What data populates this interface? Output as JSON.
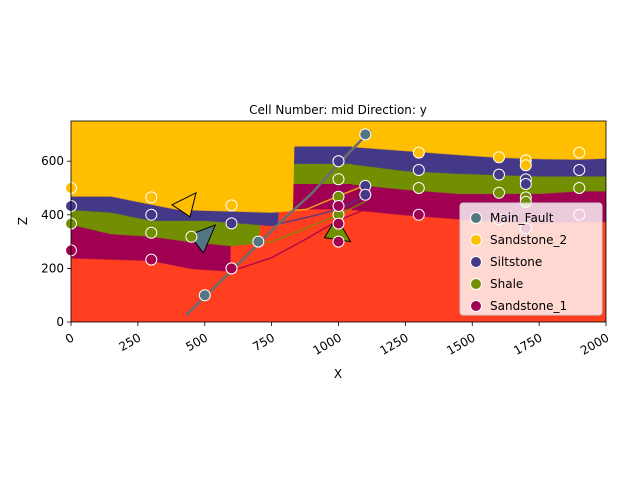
{
  "chart_data": {
    "type": "scatter",
    "title": "Cell Number: mid Direction: y",
    "xlabel": "X",
    "ylabel": "Z",
    "xlim": [
      0,
      2000
    ],
    "ylim": [
      0,
      750
    ],
    "x_ticks": [
      0,
      250,
      500,
      750,
      1000,
      1250,
      1500,
      1750,
      2000
    ],
    "y_ticks": [
      0,
      200,
      400,
      600
    ],
    "x_tick_rotation": 30,
    "grid": false,
    "legend_position": "lower right",
    "legend": [
      {
        "name": "Main_Fault",
        "color": "#527682"
      },
      {
        "name": "Sandstone_2",
        "color": "#ffbe00"
      },
      {
        "name": "Siltstone",
        "color": "#443988"
      },
      {
        "name": "Shale",
        "color": "#728f02"
      },
      {
        "name": "Sandstone_1",
        "color": "#9f0052"
      }
    ],
    "basement_color": "#ff3f20",
    "units": [
      {
        "name": "Sandstone_2",
        "color": "#ffbe00",
        "base_left": [
          [
            0,
            470
          ],
          [
            150,
            470
          ],
          [
            250,
            450
          ],
          [
            400,
            420
          ],
          [
            750,
            410
          ],
          [
            880,
            420
          ],
          [
            1000,
            470
          ],
          [
            1100,
            510
          ]
        ],
        "base_right": [
          [
            1050,
            655
          ],
          [
            1250,
            640
          ],
          [
            1450,
            625
          ],
          [
            1600,
            615
          ],
          [
            1750,
            610
          ],
          [
            1900,
            608
          ],
          [
            2000,
            612
          ]
        ]
      },
      {
        "name": "Siltstone",
        "color": "#443988",
        "base_left": [
          [
            0,
            420
          ],
          [
            150,
            410
          ],
          [
            300,
            380
          ],
          [
            500,
            380
          ],
          [
            750,
            360
          ],
          [
            880,
            390
          ],
          [
            1000,
            420
          ],
          [
            1100,
            470
          ]
        ],
        "base_right": [
          [
            1050,
            590
          ],
          [
            1250,
            565
          ],
          [
            1450,
            555
          ],
          [
            1600,
            550
          ],
          [
            1750,
            545
          ],
          [
            1900,
            545
          ],
          [
            2000,
            545
          ]
        ]
      },
      {
        "name": "Shale",
        "color": "#728f02",
        "base_left": [
          [
            0,
            365
          ],
          [
            150,
            330
          ],
          [
            300,
            320
          ],
          [
            450,
            300
          ],
          [
            600,
            285
          ],
          [
            750,
            300
          ],
          [
            880,
            350
          ],
          [
            1000,
            400
          ],
          [
            1100,
            450
          ]
        ],
        "base_right": [
          [
            1050,
            515
          ],
          [
            1250,
            495
          ],
          [
            1450,
            480
          ],
          [
            1600,
            480
          ],
          [
            1750,
            480
          ],
          [
            1900,
            490
          ],
          [
            2000,
            490
          ]
        ]
      },
      {
        "name": "Sandstone_1",
        "color": "#9f0052",
        "base_left": [
          [
            0,
            240
          ],
          [
            150,
            235
          ],
          [
            300,
            230
          ],
          [
            450,
            200
          ],
          [
            600,
            190
          ],
          [
            750,
            240
          ],
          [
            880,
            310
          ],
          [
            1000,
            380
          ],
          [
            1100,
            420
          ]
        ],
        "base_right": [
          [
            1050,
            420
          ],
          [
            1250,
            400
          ],
          [
            1450,
            385
          ],
          [
            1600,
            375
          ],
          [
            1750,
            370
          ],
          [
            1900,
            375
          ],
          [
            2000,
            375
          ]
        ]
      }
    ],
    "fault_line": [
      [
        430,
        25
      ],
      [
        700,
        290
      ],
      [
        780,
        370
      ],
      [
        900,
        480
      ],
      [
        1000,
        590
      ],
      [
        1120,
        715
      ]
    ],
    "series": [
      {
        "name": "Main_Fault",
        "color": "#527682",
        "points": [
          [
            500,
            100
          ],
          [
            600,
            200
          ],
          [
            700,
            300
          ],
          [
            1000,
            600
          ],
          [
            1100,
            700
          ]
        ]
      },
      {
        "name": "Sandstone_2",
        "color": "#ffbe00",
        "points": [
          [
            0,
            500
          ],
          [
            300,
            465
          ],
          [
            600,
            435
          ],
          [
            1300,
            632
          ],
          [
            1600,
            615
          ],
          [
            1700,
            603
          ],
          [
            1700,
            585
          ],
          [
            1900,
            632
          ]
        ]
      },
      {
        "name": "Siltstone",
        "color": "#443988",
        "points": [
          [
            0,
            433
          ],
          [
            300,
            400
          ],
          [
            600,
            368
          ],
          [
            1000,
            600
          ],
          [
            1100,
            508
          ],
          [
            1100,
            475
          ],
          [
            1300,
            567
          ],
          [
            1600,
            550
          ],
          [
            1700,
            532
          ],
          [
            1700,
            515
          ],
          [
            1900,
            567
          ]
        ]
      },
      {
        "name": "Shale",
        "color": "#728f02",
        "points": [
          [
            0,
            367
          ],
          [
            300,
            333
          ],
          [
            450,
            318
          ],
          [
            1000,
            533
          ],
          [
            1000,
            467
          ],
          [
            1000,
            400
          ],
          [
            1300,
            500
          ],
          [
            1600,
            482
          ],
          [
            1700,
            465
          ],
          [
            1700,
            448
          ],
          [
            1900,
            500
          ]
        ]
      },
      {
        "name": "Sandstone_1",
        "color": "#9f0052",
        "points": [
          [
            0,
            267
          ],
          [
            300,
            233
          ],
          [
            600,
            200
          ],
          [
            1000,
            367
          ],
          [
            1000,
            300
          ],
          [
            1000,
            433
          ],
          [
            1300,
            400
          ],
          [
            1600,
            383
          ],
          [
            1700,
            350
          ],
          [
            1900,
            400
          ]
        ]
      }
    ],
    "orientations": [
      {
        "x": 430,
        "y": 430,
        "color": "#ffbe00",
        "dir": "left"
      },
      {
        "x": 480,
        "y": 310,
        "color": "#527682",
        "dir": "up-right"
      },
      {
        "x": 1000,
        "y": 330,
        "color": "#728f02",
        "dir": "up-left"
      }
    ]
  }
}
